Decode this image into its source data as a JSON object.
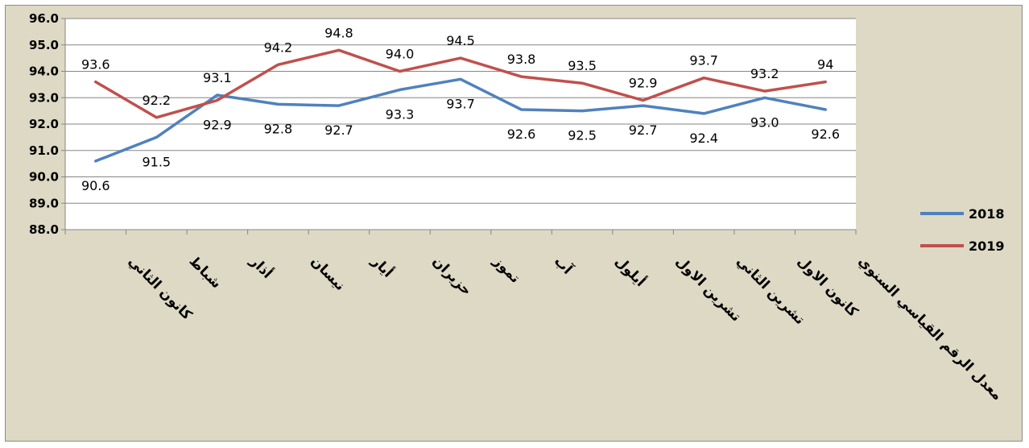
{
  "chart_data": {
    "type": "line",
    "categories": [
      "كانون الثاني",
      "شباط",
      "أذار",
      "نيسان",
      "أيار",
      "حزيران",
      "تموز",
      "آب",
      "أيلول",
      "تشرين الاول",
      "تشرين الثاني",
      "كانون الاول",
      "معدل الرقم القياسي السنوي"
    ],
    "series": [
      {
        "name": "2018",
        "color": "#4f81bd",
        "values": [
          90.6,
          91.5,
          93.1,
          92.75,
          92.7,
          93.3,
          93.7,
          92.55,
          92.5,
          92.7,
          92.4,
          93.0,
          92.55
        ],
        "labels": [
          "90.6",
          "91.5",
          "93.1",
          "92.8",
          "92.7",
          "93.3",
          "93.7",
          "92.6",
          "92.5",
          "92.7",
          "92.4",
          "93.0",
          "92.6"
        ]
      },
      {
        "name": "2019",
        "color": "#c0504d",
        "values": [
          93.6,
          92.25,
          92.9,
          94.25,
          94.8,
          94.0,
          94.5,
          93.8,
          93.55,
          92.9,
          93.75,
          93.25,
          93.6
        ],
        "labels": [
          "93.6",
          "92.2",
          "92.9",
          "94.2",
          "94.8",
          "94.0",
          "94.5",
          "93.8",
          "93.5",
          "92.9",
          "93.7",
          "93.2",
          "94"
        ]
      }
    ],
    "ylim": [
      88.0,
      96.0
    ],
    "yticks": [
      "88.0",
      "89.0",
      "90.0",
      "91.0",
      "92.0",
      "93.0",
      "94.0",
      "95.0",
      "96.0"
    ],
    "grid": true,
    "legend_position": "right",
    "title": "",
    "xlabel": "",
    "ylabel": ""
  }
}
